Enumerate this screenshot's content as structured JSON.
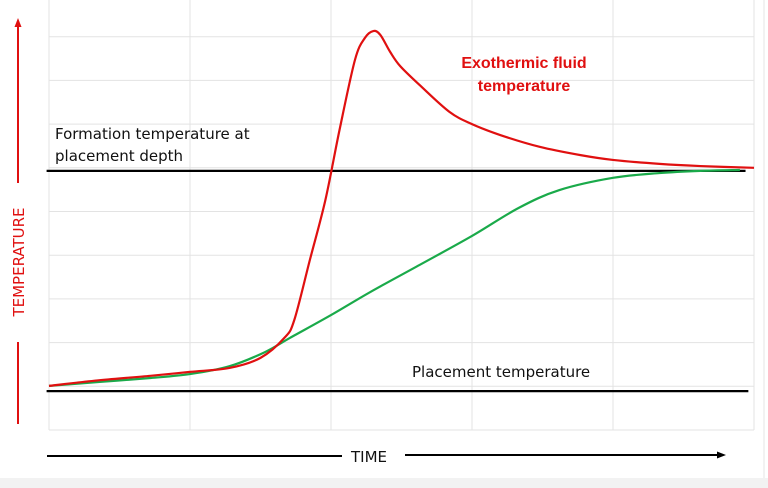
{
  "chart_data": {
    "type": "line",
    "xlabel": "TIME",
    "ylabel": "TEMPERATURE",
    "xlim": [
      0,
      5
    ],
    "ylim": [
      0,
      9.8
    ],
    "grid": true,
    "series": [
      {
        "name": "Exothermic fluid temperature",
        "color": "#e01010",
        "x": [
          0,
          0.36,
          0.72,
          1.0,
          1.28,
          1.5,
          1.67,
          1.74,
          1.85,
          1.96,
          2.06,
          2.17,
          2.24,
          2.3,
          2.35,
          2.42,
          2.49,
          2.63,
          2.84,
          3.0,
          3.2,
          3.48,
          3.77,
          4.0,
          4.33,
          4.62,
          5.0
        ],
        "y": [
          1.01,
          1.14,
          1.24,
          1.33,
          1.42,
          1.65,
          2.11,
          2.52,
          3.89,
          5.26,
          6.86,
          8.47,
          8.97,
          9.13,
          9.04,
          8.65,
          8.33,
          7.89,
          7.28,
          7.0,
          6.75,
          6.48,
          6.29,
          6.18,
          6.09,
          6.04,
          6.0
        ]
      },
      {
        "color": "#1aaa4a",
        "x": [
          0,
          0.36,
          0.72,
          1.0,
          1.28,
          1.53,
          1.71,
          2.0,
          2.28,
          2.63,
          3.0,
          3.33,
          3.62,
          4.0,
          4.33,
          4.62,
          4.9
        ],
        "y": [
          1.01,
          1.1,
          1.19,
          1.28,
          1.46,
          1.78,
          2.11,
          2.63,
          3.16,
          3.78,
          4.44,
          5.08,
          5.49,
          5.77,
          5.88,
          5.93,
          5.95
        ]
      }
    ],
    "reference_lines": [
      {
        "label": "Formation temperature at placement depth",
        "label_lines": [
          "Formation temperature at",
          "placement depth"
        ],
        "y": 5.93,
        "x_range": [
          -0.01,
          4.94
        ],
        "color": "#000000"
      },
      {
        "label": "Placement temperature",
        "y": 0.89,
        "x_range": [
          -0.01,
          4.96
        ],
        "color": "#000000"
      }
    ],
    "annotations": {
      "exothermic_lines": [
        "Exothermic fluid",
        "temperature"
      ]
    },
    "axis_colors": {
      "y": "#e01010",
      "x": "#000000"
    }
  }
}
